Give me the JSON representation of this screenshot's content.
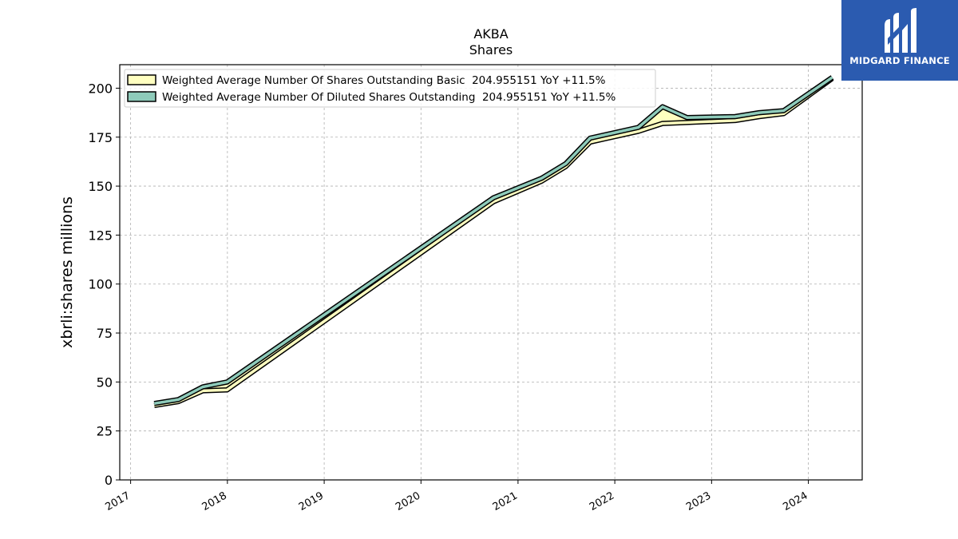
{
  "chart_data": {
    "type": "area",
    "title": "AKBA",
    "subtitle": "Shares",
    "xlabel": "",
    "ylabel": "xbrli:shares millions",
    "xlim": [
      "2016-11-21",
      "2024-07-22"
    ],
    "ylim": [
      0,
      212
    ],
    "yticks": [
      0,
      25,
      50,
      75,
      100,
      125,
      150,
      175,
      200
    ],
    "xticks": [
      {
        "date": "2017-01-01",
        "label": "2017"
      },
      {
        "date": "2018-01-01",
        "label": "2018"
      },
      {
        "date": "2019-01-01",
        "label": "2019"
      },
      {
        "date": "2020-01-01",
        "label": "2020"
      },
      {
        "date": "2021-01-01",
        "label": "2021"
      },
      {
        "date": "2022-01-01",
        "label": "2022"
      },
      {
        "date": "2023-01-01",
        "label": "2023"
      },
      {
        "date": "2024-01-01",
        "label": "2024"
      }
    ],
    "grid": true,
    "legend_position": "top-left",
    "series": [
      {
        "name": "Weighted Average Number Of Shares Outstanding Basic  204.955151 YoY +11.5%",
        "color": "#ffffc0",
        "x": [
          "2017-03-31",
          "2017-06-30",
          "2017-09-30",
          "2017-12-31",
          "2020-09-30",
          "2021-03-31",
          "2021-06-30",
          "2021-09-30",
          "2022-03-31",
          "2022-06-30",
          "2022-09-30",
          "2023-03-31",
          "2023-06-30",
          "2023-09-30",
          "2024-03-31"
        ],
        "values": [
          38,
          40,
          45.5,
          46,
          142,
          152.5,
          160,
          172.5,
          178,
          182,
          182.5,
          183.5,
          185.5,
          187,
          205
        ]
      },
      {
        "name": "Weighted Average Number Of Diluted Shares Outstanding  204.955151 YoY +11.5%",
        "color": "#8ecbba",
        "x": [
          "2017-03-31",
          "2017-06-30",
          "2017-09-30",
          "2017-12-31",
          "2020-09-30",
          "2021-03-31",
          "2021-06-30",
          "2021-09-30",
          "2022-03-31",
          "2022-06-30",
          "2022-09-30",
          "2023-03-31",
          "2023-06-30",
          "2023-09-30",
          "2024-03-31"
        ],
        "values": [
          39,
          41,
          47.5,
          50,
          144,
          154,
          161.5,
          174.5,
          180,
          190.5,
          185,
          185.5,
          187.5,
          188.5,
          205.5
        ]
      }
    ]
  },
  "logo": {
    "text": "MIDGARD FINANCE",
    "background": "#2b5bb0"
  }
}
